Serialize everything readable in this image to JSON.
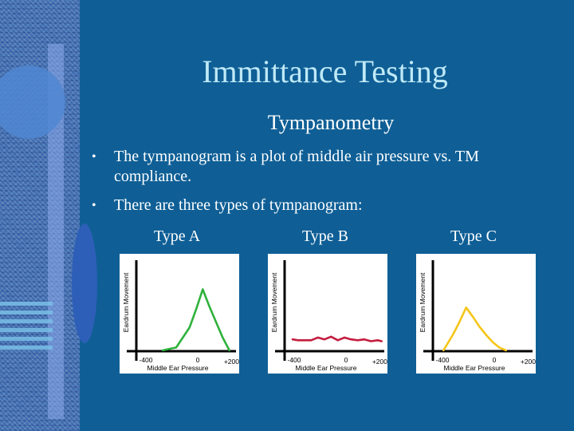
{
  "slide": {
    "title": "Immittance Testing",
    "subtitle": "Tympanometry",
    "bullets": [
      "The tympanogram is a plot of middle air pressure vs. TM compliance.",
      "There are three types of tympanogram:"
    ]
  },
  "chart_data": [
    {
      "type": "line",
      "title": "Type A",
      "xlabel": "Middle Ear Pressure",
      "ylabel": "Eardrum Movement",
      "xlim": [
        -500,
        250
      ],
      "ylim": [
        0,
        10
      ],
      "tick_labels": [
        "-400",
        "0",
        "+200"
      ],
      "color": "#2eb23c",
      "x": [
        -300,
        -200,
        -100,
        -50,
        0,
        50,
        100,
        150,
        200
      ],
      "y": [
        0.1,
        0.4,
        2.6,
        4.6,
        6.8,
        4.9,
        3.2,
        1.5,
        0.1
      ]
    },
    {
      "type": "line",
      "title": "Type B",
      "xlabel": "Middle Ear Pressure",
      "ylabel": "Eardrum Movement",
      "xlim": [
        -500,
        250
      ],
      "ylim": [
        0,
        10
      ],
      "tick_labels": [
        "-400",
        "0",
        "+200"
      ],
      "color": "#c41d3e",
      "x": [
        -440,
        -400,
        -300,
        -250,
        -200,
        -150,
        -100,
        -50,
        0,
        50,
        100,
        150,
        200,
        230
      ],
      "y": [
        1.3,
        1.2,
        1.2,
        1.5,
        1.3,
        1.6,
        1.2,
        1.5,
        1.3,
        1.2,
        1.3,
        1.1,
        1.2,
        1.1
      ]
    },
    {
      "type": "line",
      "title": "Type C",
      "xlabel": "Middle Ear Pressure",
      "ylabel": "Eardrum Movement",
      "xlim": [
        -500,
        250
      ],
      "ylim": [
        0,
        10
      ],
      "tick_labels": [
        "-400",
        "0",
        "+200"
      ],
      "color": "#f5c518",
      "x": [
        -420,
        -350,
        -300,
        -250,
        -200,
        -150,
        -100,
        -50,
        0,
        50
      ],
      "y": [
        0.1,
        1.8,
        3.2,
        4.8,
        3.8,
        2.7,
        1.8,
        1.0,
        0.4,
        0.1
      ]
    }
  ]
}
